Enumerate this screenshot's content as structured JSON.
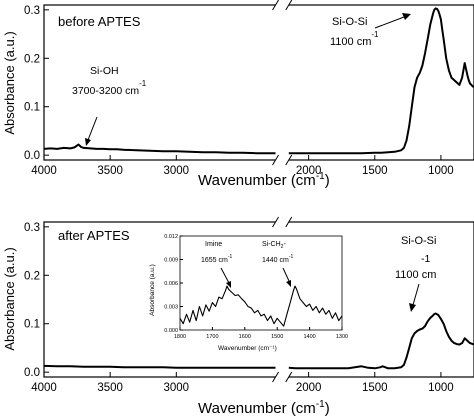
{
  "chart_data": [
    {
      "type": "line",
      "panel_label": "before APTES",
      "xlabel": "Wavenumber (cm⁻¹)",
      "ylabel": "Absorbance (a.u.)",
      "xlim": [
        4000,
        750
      ],
      "x_axis_break": [
        2150,
        2250
      ],
      "xticks": [
        4000,
        3500,
        3000,
        2000,
        1500,
        1000
      ],
      "xtick_labels": [
        "4000",
        "3500",
        "3000",
        "2000",
        "1500",
        "1000"
      ],
      "ylim": [
        -0.01,
        0.31
      ],
      "yticks": [
        0.0,
        0.1,
        0.2,
        0.3
      ],
      "ytick_labels": [
        "0.0",
        "0.1",
        "0.2",
        "0.3"
      ],
      "annotations": [
        {
          "id": "sioh",
          "line1": "Si-OH",
          "line2": "3700-3200 cm",
          "sup": "-1",
          "arrow_to": [
            3750,
            0.02
          ]
        },
        {
          "id": "siosi",
          "line1": "Si-O-Si",
          "line2": "1100 cm",
          "sup": "-1",
          "arrow_to": [
            1050,
            0.3
          ]
        }
      ],
      "series": [
        {
          "x": [
            4000,
            3950,
            3900,
            3850,
            3800,
            3770,
            3750,
            3740,
            3720,
            3700,
            3650,
            3600,
            3550,
            3500,
            3450,
            3400,
            3300,
            3200,
            3100,
            3000,
            2900,
            2800,
            2700,
            2600,
            2500,
            2400,
            2300,
            2250,
            2150,
            2100,
            2000,
            1900,
            1800,
            1700,
            1600,
            1500,
            1450,
            1400,
            1350,
            1300,
            1280,
            1260,
            1240,
            1220,
            1200,
            1180,
            1160,
            1140,
            1120,
            1100,
            1080,
            1060,
            1050,
            1040,
            1030,
            1020,
            1010,
            1000,
            990,
            980,
            960,
            940,
            920,
            900,
            880,
            860,
            840,
            820,
            800,
            790,
            780,
            770,
            760,
            750
          ],
          "y": [
            0.013,
            0.014,
            0.013,
            0.015,
            0.014,
            0.016,
            0.02,
            0.022,
            0.017,
            0.015,
            0.014,
            0.013,
            0.013,
            0.012,
            0.012,
            0.011,
            0.01,
            0.009,
            0.008,
            0.008,
            0.007,
            0.006,
            0.006,
            0.005,
            0.005,
            0.004,
            0.004,
            0.004,
            0.004,
            0.004,
            0.004,
            0.004,
            0.004,
            0.004,
            0.004,
            0.005,
            0.005,
            0.006,
            0.007,
            0.01,
            0.015,
            0.03,
            0.06,
            0.1,
            0.14,
            0.16,
            0.17,
            0.185,
            0.21,
            0.24,
            0.27,
            0.292,
            0.3,
            0.303,
            0.302,
            0.298,
            0.29,
            0.28,
            0.26,
            0.24,
            0.2,
            0.175,
            0.16,
            0.155,
            0.15,
            0.145,
            0.16,
            0.19,
            0.165,
            0.155,
            0.148,
            0.145,
            0.142,
            0.141
          ]
        }
      ]
    },
    {
      "type": "line",
      "panel_label": "after APTES",
      "xlabel": "Wavenumber (cm⁻¹)",
      "ylabel": "Absorbance (a.u.)",
      "xlim": [
        4000,
        750
      ],
      "x_axis_break": [
        2150,
        2250
      ],
      "xticks": [
        4000,
        3500,
        3000,
        2000,
        1500,
        1000
      ],
      "xtick_labels": [
        "4000",
        "3500",
        "3000",
        "2000",
        "1500",
        "1000"
      ],
      "ylim": [
        -0.01,
        0.31
      ],
      "yticks": [
        0.0,
        0.1,
        0.2,
        0.3
      ],
      "ytick_labels": [
        "0.0",
        "0.1",
        "0.2",
        "0.3"
      ],
      "annotations": [
        {
          "id": "siosi",
          "line1": "Si-O-Si",
          "line2": "1100 cm",
          "sup": "-1",
          "arrow_to": [
            1050,
            0.115
          ]
        }
      ],
      "series": [
        {
          "x": [
            4000,
            3900,
            3800,
            3700,
            3600,
            3500,
            3400,
            3300,
            3200,
            3100,
            3000,
            2900,
            2800,
            2700,
            2600,
            2500,
            2400,
            2300,
            2250,
            2150,
            2100,
            2000,
            1900,
            1800,
            1700,
            1650,
            1600,
            1550,
            1500,
            1460,
            1440,
            1420,
            1400,
            1350,
            1300,
            1280,
            1260,
            1240,
            1220,
            1200,
            1180,
            1160,
            1140,
            1120,
            1100,
            1080,
            1060,
            1050,
            1040,
            1020,
            1000,
            980,
            960,
            940,
            920,
            900,
            880,
            860,
            840,
            820,
            800,
            780,
            760,
            750
          ],
          "y": [
            0.013,
            0.012,
            0.012,
            0.011,
            0.011,
            0.011,
            0.01,
            0.01,
            0.01,
            0.01,
            0.009,
            0.009,
            0.009,
            0.009,
            0.009,
            0.009,
            0.009,
            0.009,
            0.009,
            0.009,
            0.008,
            0.008,
            0.008,
            0.008,
            0.008,
            0.01,
            0.012,
            0.009,
            0.008,
            0.01,
            0.012,
            0.01,
            0.008,
            0.008,
            0.01,
            0.015,
            0.03,
            0.05,
            0.07,
            0.08,
            0.085,
            0.088,
            0.09,
            0.095,
            0.105,
            0.112,
            0.117,
            0.12,
            0.121,
            0.118,
            0.11,
            0.1,
            0.085,
            0.073,
            0.065,
            0.06,
            0.058,
            0.057,
            0.06,
            0.07,
            0.065,
            0.06,
            0.058,
            0.057
          ]
        }
      ]
    },
    {
      "type": "line",
      "panel_label": "inset",
      "xlabel": "Wavenumber (cm⁻¹)",
      "ylabel": "Absorbance (a.u.)",
      "xlim": [
        1800,
        1300
      ],
      "xticks": [
        1800,
        1700,
        1600,
        1500,
        1400,
        1300
      ],
      "xtick_labels": [
        "1800",
        "1700",
        "1600",
        "1500",
        "1400",
        "1300"
      ],
      "ylim": [
        0.0,
        0.012
      ],
      "yticks": [
        0.0,
        0.003,
        0.006,
        0.009,
        0.012
      ],
      "ytick_labels": [
        "0.000",
        "0.003",
        "0.006",
        "0.009",
        "0.012"
      ],
      "annotations": [
        {
          "id": "imine",
          "line1": "Imine",
          "line2": "1655 cm",
          "sup": "-1",
          "arrow_to": [
            1655,
            0.0058
          ]
        },
        {
          "id": "sich2",
          "line1": "Si-CH",
          "line1_sub": "2",
          "line1_tail": "-",
          "line2": "1440 cm",
          "sup": "-1",
          "arrow_to": [
            1440,
            0.0058
          ]
        }
      ],
      "series": [
        {
          "x": [
            1800,
            1790,
            1780,
            1770,
            1760,
            1750,
            1740,
            1730,
            1720,
            1710,
            1700,
            1690,
            1680,
            1670,
            1660,
            1655,
            1650,
            1640,
            1630,
            1620,
            1610,
            1600,
            1590,
            1580,
            1570,
            1560,
            1550,
            1540,
            1530,
            1520,
            1510,
            1500,
            1490,
            1480,
            1470,
            1460,
            1450,
            1445,
            1440,
            1430,
            1420,
            1410,
            1400,
            1390,
            1380,
            1370,
            1360,
            1350,
            1340,
            1330,
            1320,
            1310,
            1300
          ],
          "y": [
            0.0015,
            0.0008,
            0.002,
            0.001,
            0.0025,
            0.0012,
            0.003,
            0.0018,
            0.0032,
            0.0024,
            0.0035,
            0.003,
            0.0042,
            0.004,
            0.005,
            0.0056,
            0.0052,
            0.0048,
            0.0044,
            0.0045,
            0.004,
            0.0036,
            0.003,
            0.0028,
            0.0022,
            0.0025,
            0.0018,
            0.002,
            0.0012,
            0.0018,
            0.0008,
            0.0015,
            0.001,
            0.0005,
            0.002,
            0.0035,
            0.005,
            0.0056,
            0.0052,
            0.004,
            0.0035,
            0.003,
            0.0033,
            0.0025,
            0.003,
            0.0022,
            0.0028,
            0.002,
            0.0025,
            0.0015,
            0.0022,
            0.0012,
            0.0018
          ]
        }
      ]
    }
  ]
}
